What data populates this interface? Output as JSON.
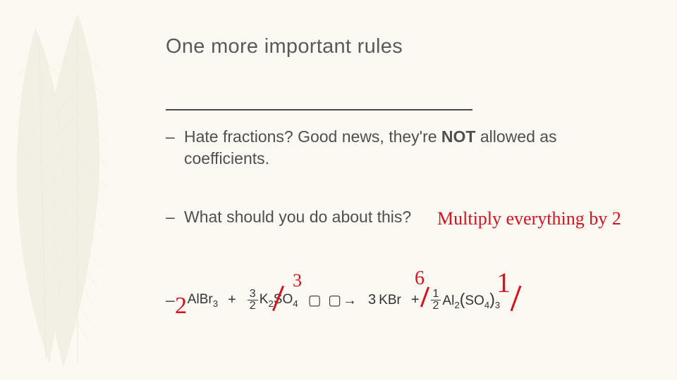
{
  "slide": {
    "background_color": "#fbf9f2",
    "accent_color": "#d8111f",
    "text_color": "#4f4f4f",
    "title": "One more important rules",
    "bullets": [
      {
        "html": "Hate fractions? Good news, they're <b>NOT</b> allowed as coefficients."
      },
      {
        "html": "What should you do about this?"
      }
    ],
    "equation": {
      "terms": [
        {
          "coef_num": "",
          "coef_den": "",
          "coef_plain": "",
          "formula": "AlBr",
          "sub": "3"
        },
        {
          "op": "+"
        },
        {
          "coef_num": "3",
          "coef_den": "2",
          "formula": "K",
          "sub": "2",
          "tail": "SO",
          "tail_sub": "4"
        },
        {
          "op": "→"
        },
        {
          "coef_plain": "3",
          "formula": "KBr"
        },
        {
          "op": "+"
        },
        {
          "coef_num": "1",
          "coef_den": "2",
          "formula": "Al",
          "sub": "2",
          "paren": "SO",
          "paren_sub": "4",
          "outer_sub": "3"
        }
      ]
    },
    "annotations": {
      "multiply_text": "Multiply everything by 2",
      "coef_rewrites": [
        "2",
        "3",
        "6",
        "1"
      ]
    },
    "feather_color": "#ebe9dc"
  }
}
